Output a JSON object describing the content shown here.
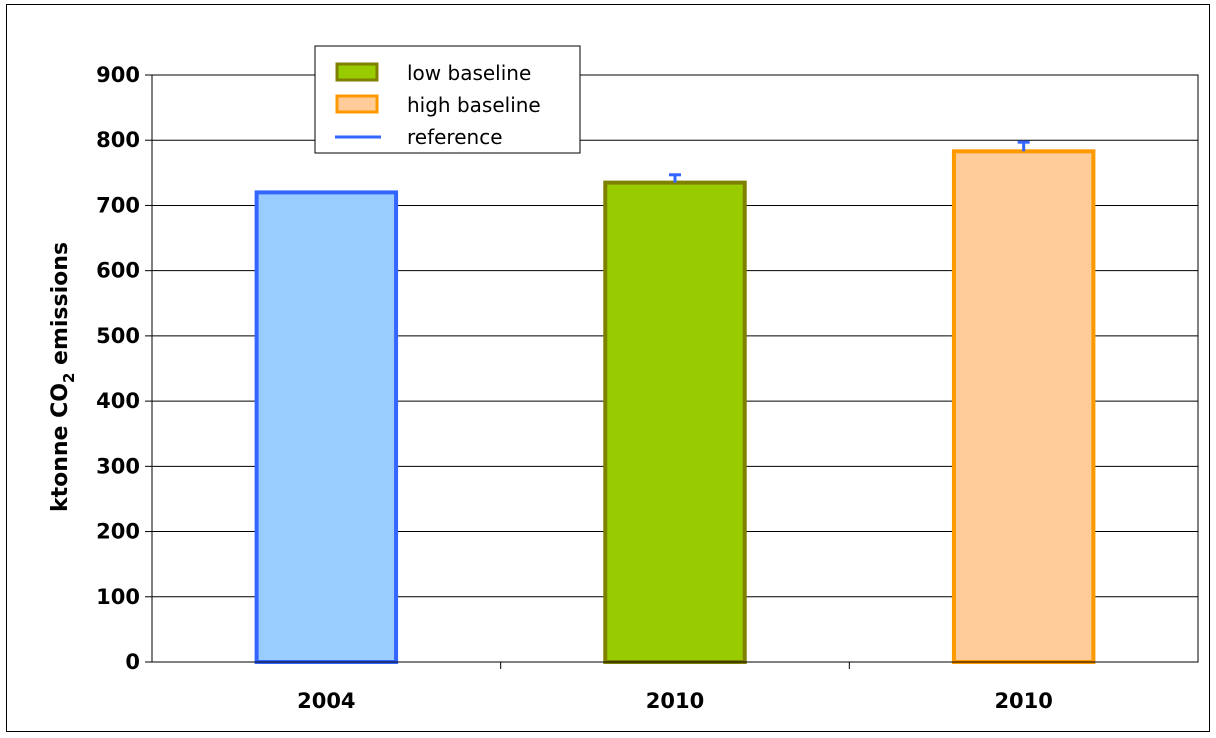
{
  "chart_data": {
    "type": "bar",
    "categories": [
      "2004",
      "2010",
      "2010"
    ],
    "values": [
      720,
      735,
      783
    ],
    "error_bars_upper": [
      0,
      12,
      14
    ],
    "bar_series": [
      "reference",
      "low baseline",
      "high baseline"
    ],
    "ylabel_parts": {
      "main": "ktonne CO",
      "sub": "2",
      "suffix": " emissions"
    },
    "ylim": [
      0,
      900
    ],
    "yticks": [
      "0",
      "100",
      "200",
      "300",
      "400",
      "500",
      "600",
      "700",
      "800",
      "900"
    ],
    "grid": true,
    "legend_placement": "top-left",
    "legend": [
      {
        "label": "low baseline",
        "symbol": "box",
        "fill": "#99cc00",
        "stroke": "#808000"
      },
      {
        "label": "high baseline",
        "symbol": "box",
        "fill": "#ffcc99",
        "stroke": "#ff9900"
      },
      {
        "label": "reference",
        "symbol": "line",
        "stroke": "#3366ff"
      }
    ],
    "colors": {
      "reference_fill": "#99ccff",
      "reference_stroke": "#3366ff",
      "low_fill": "#99cc00",
      "low_stroke": "#808000",
      "high_fill": "#ffcc99",
      "high_stroke": "#ff9900",
      "error_bar": "#3366ff"
    }
  }
}
